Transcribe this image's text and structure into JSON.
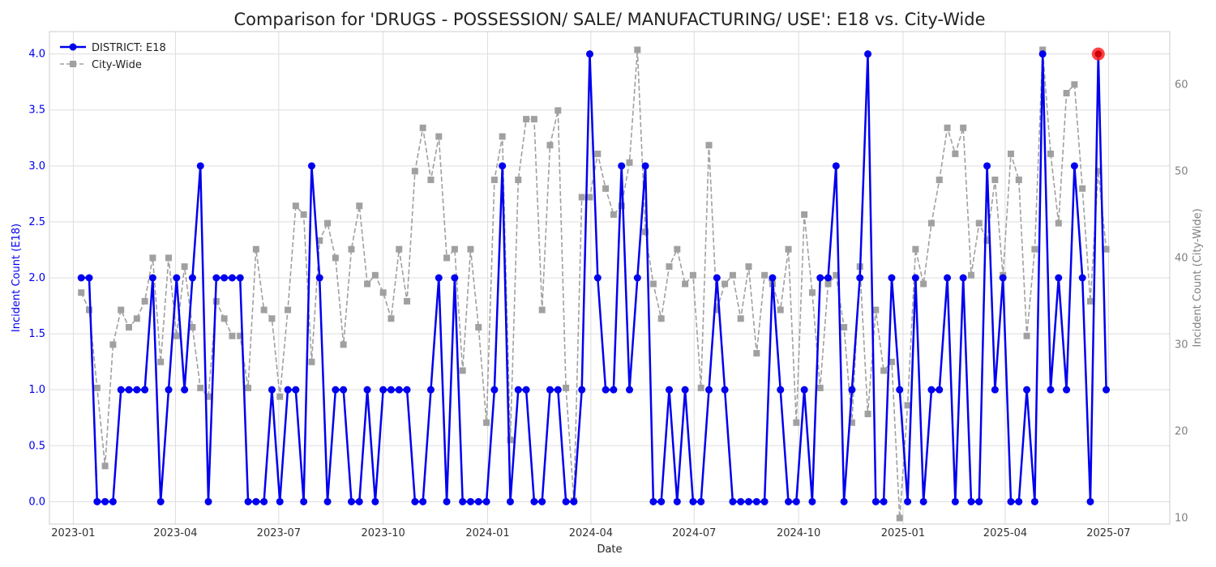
{
  "chart_data": {
    "type": "line",
    "title": "Comparison for 'DRUGS - POSSESSION/ SALE/ MANUFACTURING/ USE': E18 vs. City-Wide",
    "xlabel": "Date",
    "ylabel_left": "Incident Count (E18)",
    "ylabel_right": "Incident Count (City-Wide)",
    "xlim": [
      "2022-12-11",
      "2025-08-24"
    ],
    "ylim_left": [
      -0.2,
      4.2
    ],
    "ylim_right": [
      9.3,
      66.1
    ],
    "left_ticks": [
      "0.0",
      "0.5",
      "1.0",
      "1.5",
      "2.0",
      "2.5",
      "3.0",
      "3.5",
      "4.0"
    ],
    "right_ticks": [
      "10",
      "20",
      "30",
      "40",
      "50",
      "60"
    ],
    "x_ticks": [
      "2023-01",
      "2023-04",
      "2023-07",
      "2023-10",
      "2024-01",
      "2024-04",
      "2024-07",
      "2024-10",
      "2025-01",
      "2025-04",
      "2025-07"
    ],
    "grid": true,
    "legend_position": "top-left",
    "colors": {
      "district": "#0000ee",
      "city": "#a0a0a0",
      "highlight": "#ff2020"
    },
    "x_start": "2023-01-08",
    "x_step_days": 7,
    "series": [
      {
        "name": "DISTRICT: E18",
        "axis": "left",
        "values": [
          2,
          2,
          0,
          0,
          0,
          1,
          1,
          1,
          1,
          2,
          0,
          1,
          2,
          1,
          2,
          3,
          0,
          2,
          2,
          2,
          2,
          0,
          0,
          0,
          1,
          0,
          1,
          1,
          0,
          3,
          2,
          0,
          1,
          1,
          0,
          0,
          1,
          0,
          1,
          1,
          1,
          1,
          0,
          0,
          1,
          2,
          0,
          2,
          0,
          0,
          0,
          0,
          1,
          3,
          0,
          1,
          1,
          0,
          0,
          1,
          1,
          0,
          0,
          1,
          4,
          2,
          1,
          1,
          3,
          1,
          2,
          3,
          0,
          0,
          1,
          0,
          1,
          0,
          0,
          1,
          2,
          1,
          0,
          0,
          0,
          0,
          0,
          2,
          1,
          0,
          0,
          1,
          0,
          2,
          2,
          3,
          0,
          1,
          2,
          4,
          0,
          0,
          2,
          1,
          0,
          2,
          0,
          1,
          1,
          2,
          0,
          2,
          0,
          0,
          3,
          1,
          2,
          0,
          0,
          1,
          0,
          4,
          1,
          2,
          1,
          3,
          2,
          0,
          4,
          1
        ]
      },
      {
        "name": "City-Wide",
        "axis": "right",
        "values": [
          36,
          34,
          25,
          16,
          30,
          34,
          32,
          33,
          35,
          40,
          28,
          40,
          31,
          39,
          32,
          25,
          24,
          35,
          33,
          31,
          31,
          25,
          41,
          34,
          33,
          24,
          34,
          46,
          45,
          28,
          42,
          44,
          40,
          30,
          41,
          46,
          37,
          38,
          36,
          33,
          41,
          35,
          50,
          55,
          49,
          54,
          40,
          41,
          27,
          41,
          32,
          21,
          49,
          54,
          19,
          49,
          56,
          56,
          34,
          53,
          57,
          25,
          12,
          47,
          47,
          52,
          48,
          45,
          46,
          51,
          64,
          43,
          37,
          33,
          39,
          41,
          37,
          38,
          25,
          53,
          34,
          37,
          38,
          33,
          39,
          29,
          38,
          37,
          34,
          41,
          21,
          45,
          36,
          25,
          37,
          38,
          32,
          21,
          39,
          22,
          34,
          27,
          28,
          10,
          23,
          41,
          37,
          44,
          49,
          55,
          52,
          55,
          38,
          44,
          42,
          49,
          38,
          52,
          49,
          31,
          41,
          64,
          52,
          44,
          59,
          60,
          48,
          35,
          50,
          41
        ]
      }
    ],
    "highlight": {
      "series": "DISTRICT: E18",
      "index": 128,
      "value": 4
    }
  }
}
